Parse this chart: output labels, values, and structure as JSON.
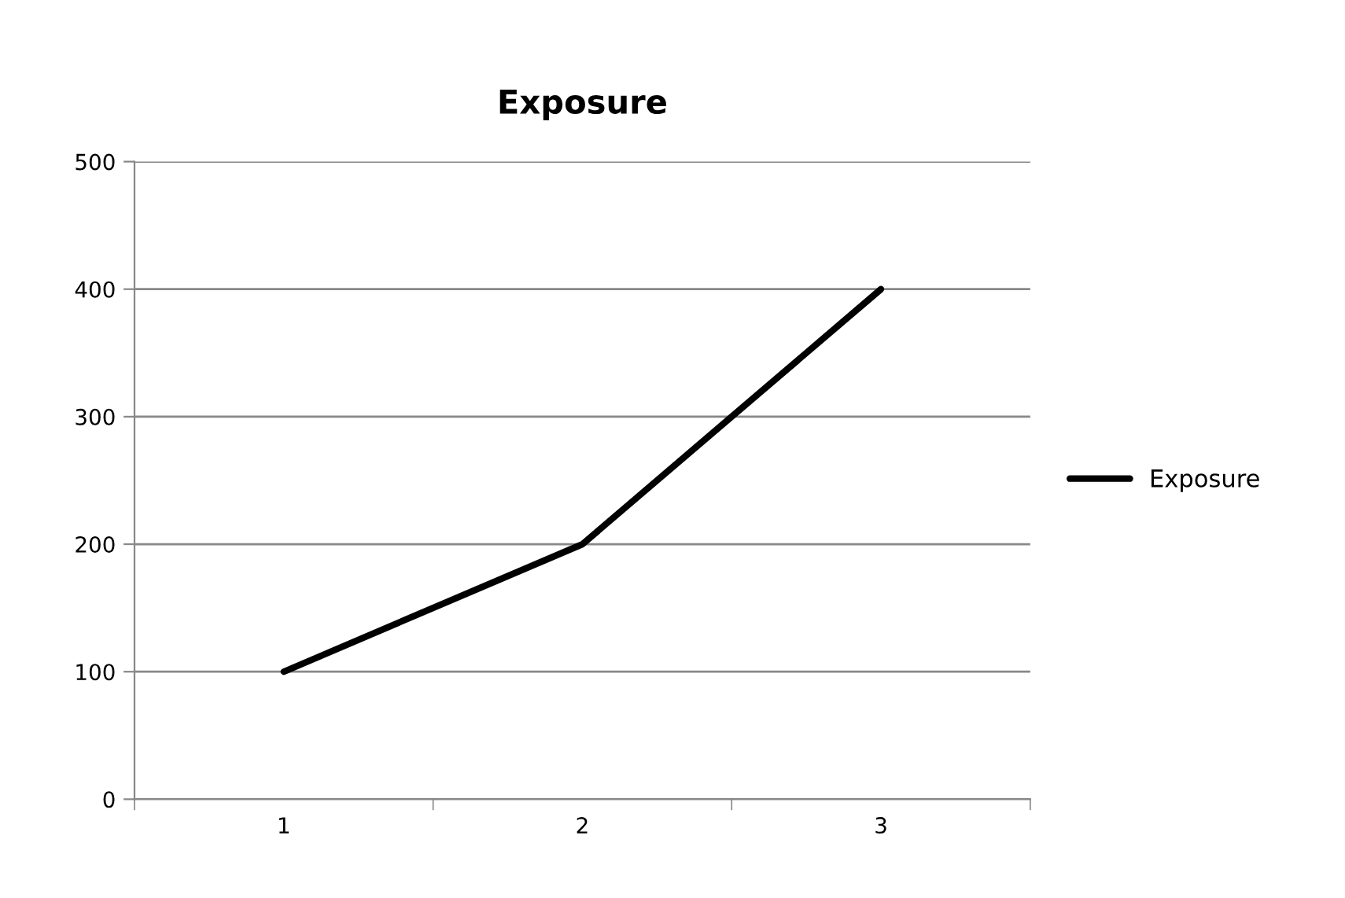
{
  "chart_data": {
    "type": "line",
    "title": "Exposure",
    "categories": [
      "1",
      "2",
      "3"
    ],
    "series": [
      {
        "name": "Exposure",
        "color": "#000000",
        "values": [
          100,
          200,
          400
        ]
      }
    ],
    "ylim": [
      0,
      500
    ],
    "yticks": [
      0,
      100,
      200,
      300,
      400,
      500
    ],
    "grid": "y",
    "legend": "right",
    "marker": "none",
    "line_style": "solid"
  }
}
